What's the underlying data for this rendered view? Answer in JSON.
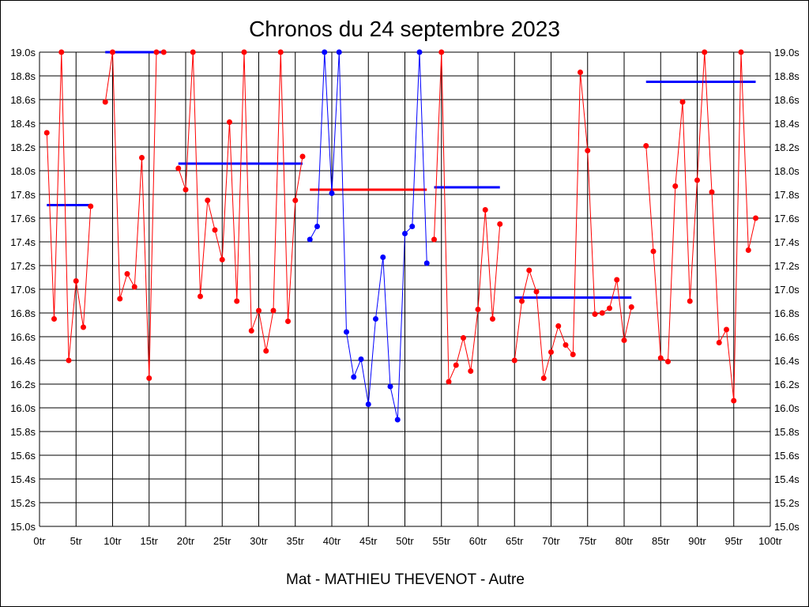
{
  "chart_data": {
    "type": "line",
    "title": "Chronos du 24 septembre 2023",
    "subtitle": "Mat - MATHIEU THEVENOT - Autre",
    "xlim": [
      0,
      100
    ],
    "ylim": [
      15.0,
      19.0
    ],
    "grid": true,
    "x_ticks": [
      0,
      5,
      10,
      15,
      20,
      25,
      30,
      35,
      40,
      45,
      50,
      55,
      60,
      65,
      70,
      75,
      80,
      85,
      90,
      95,
      100
    ],
    "x_tick_labels": [
      "0tr",
      "5tr",
      "10tr",
      "15tr",
      "20tr",
      "25tr",
      "30tr",
      "35tr",
      "40tr",
      "45tr",
      "50tr",
      "55tr",
      "60tr",
      "65tr",
      "70tr",
      "75tr",
      "80tr",
      "85tr",
      "90tr",
      "95tr",
      "100tr"
    ],
    "y_ticks": [
      15.0,
      15.2,
      15.4,
      15.6,
      15.8,
      16.0,
      16.2,
      16.4,
      16.6,
      16.8,
      17.0,
      17.2,
      17.4,
      17.6,
      17.8,
      18.0,
      18.2,
      18.4,
      18.6,
      18.8,
      19.0
    ],
    "y_tick_labels": [
      "15.0s",
      "15.2s",
      "15.4s",
      "15.6s",
      "15.8s",
      "16.0s",
      "16.2s",
      "16.4s",
      "16.6s",
      "16.8s",
      "17.0s",
      "17.2s",
      "17.4s",
      "17.6s",
      "17.8s",
      "18.0s",
      "18.2s",
      "18.4s",
      "18.6s",
      "18.8s",
      "19.0s"
    ],
    "colors": {
      "red": "#ff0000",
      "blue": "#0000ff",
      "grid": "#000000"
    },
    "series": [
      {
        "color": "#ff0000",
        "points": [
          [
            1,
            18.32
          ],
          [
            2,
            16.75
          ],
          [
            3,
            19.0
          ],
          [
            4,
            16.4
          ],
          [
            5,
            17.07
          ],
          [
            6,
            16.68
          ],
          [
            7,
            17.7
          ]
        ]
      },
      {
        "color": "#ff0000",
        "points": [
          [
            9,
            18.58
          ],
          [
            10,
            19.0
          ],
          [
            11,
            16.92
          ],
          [
            12,
            17.13
          ],
          [
            13,
            17.02
          ],
          [
            14,
            18.11
          ],
          [
            15,
            16.25
          ],
          [
            16,
            19.0
          ],
          [
            17,
            19.0
          ]
        ]
      },
      {
        "color": "#ff0000",
        "points": [
          [
            19,
            18.02
          ],
          [
            20,
            17.84
          ],
          [
            21,
            19.0
          ],
          [
            22,
            16.94
          ],
          [
            23,
            17.75
          ],
          [
            24,
            17.5
          ],
          [
            25,
            17.25
          ],
          [
            26,
            18.41
          ],
          [
            27,
            16.9
          ],
          [
            28,
            19.0
          ],
          [
            29,
            16.65
          ],
          [
            30,
            16.82
          ],
          [
            31,
            16.48
          ],
          [
            32,
            16.82
          ],
          [
            33,
            19.0
          ],
          [
            34,
            16.73
          ],
          [
            35,
            17.75
          ],
          [
            36,
            18.12
          ]
        ]
      },
      {
        "color": "#0000ff",
        "points": [
          [
            37,
            17.42
          ],
          [
            38,
            17.53
          ],
          [
            39,
            19.0
          ],
          [
            40,
            17.81
          ],
          [
            41,
            19.0
          ],
          [
            42,
            16.64
          ],
          [
            43,
            16.26
          ],
          [
            44,
            16.41
          ],
          [
            45,
            16.03
          ],
          [
            46,
            16.75
          ],
          [
            47,
            17.27
          ],
          [
            48,
            16.18
          ],
          [
            49,
            15.9
          ],
          [
            50,
            17.47
          ],
          [
            51,
            17.53
          ],
          [
            52,
            19.0
          ],
          [
            53,
            17.22
          ]
        ]
      },
      {
        "color": "#ff0000",
        "points": [
          [
            54,
            17.42
          ],
          [
            55,
            19.0
          ],
          [
            56,
            16.22
          ],
          [
            57,
            16.36
          ],
          [
            58,
            16.59
          ],
          [
            59,
            16.31
          ],
          [
            60,
            16.83
          ],
          [
            61,
            17.67
          ],
          [
            62,
            16.75
          ],
          [
            63,
            17.55
          ]
        ]
      },
      {
        "color": "#ff0000",
        "points": [
          [
            65,
            16.4
          ],
          [
            66,
            16.9
          ],
          [
            67,
            17.16
          ],
          [
            68,
            16.98
          ],
          [
            69,
            16.25
          ],
          [
            70,
            16.47
          ],
          [
            71,
            16.69
          ],
          [
            72,
            16.53
          ],
          [
            73,
            16.45
          ],
          [
            74,
            18.83
          ],
          [
            75,
            18.17
          ],
          [
            76,
            16.79
          ],
          [
            77,
            16.8
          ],
          [
            78,
            16.84
          ],
          [
            79,
            17.08
          ],
          [
            80,
            16.57
          ],
          [
            81,
            16.85
          ]
        ]
      },
      {
        "color": "#ff0000",
        "points": [
          [
            83,
            18.21
          ],
          [
            84,
            17.32
          ],
          [
            85,
            16.42
          ],
          [
            86,
            16.39
          ],
          [
            87,
            17.87
          ],
          [
            88,
            18.58
          ],
          [
            89,
            16.9
          ],
          [
            90,
            17.92
          ],
          [
            91,
            19.0
          ],
          [
            92,
            17.82
          ],
          [
            93,
            16.55
          ],
          [
            94,
            16.66
          ],
          [
            95,
            16.06
          ],
          [
            96,
            19.0
          ],
          [
            97,
            17.33
          ],
          [
            98,
            17.6
          ]
        ]
      }
    ],
    "average_lines": [
      {
        "color": "#0000ff",
        "x": [
          1,
          7
        ],
        "y": 17.71
      },
      {
        "color": "#0000ff",
        "x": [
          9,
          17
        ],
        "y": 19.0
      },
      {
        "color": "#0000ff",
        "x": [
          19,
          36
        ],
        "y": 18.06
      },
      {
        "color": "#ff0000",
        "x": [
          37,
          53
        ],
        "y": 17.84
      },
      {
        "color": "#0000ff",
        "x": [
          54,
          63
        ],
        "y": 17.86
      },
      {
        "color": "#0000ff",
        "x": [
          65,
          81
        ],
        "y": 16.93
      },
      {
        "color": "#0000ff",
        "x": [
          83,
          98
        ],
        "y": 18.75
      }
    ]
  }
}
